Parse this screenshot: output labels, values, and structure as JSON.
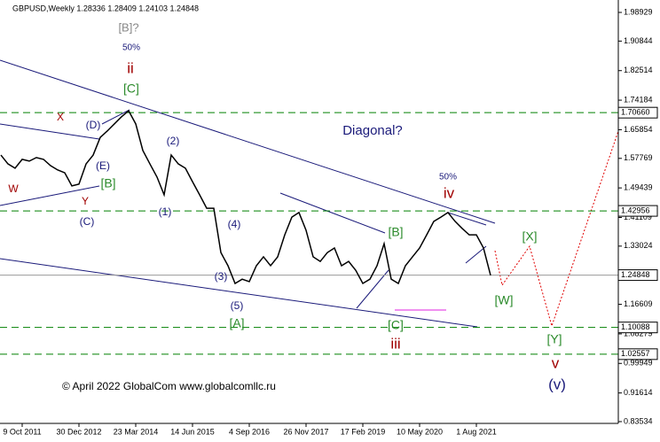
{
  "chart_data": {
    "type": "line",
    "title": "GBPUSD,Weekly  1.28336 1.28409 1.24103 1.24848",
    "categories": [
      null,
      null,
      null,
      "9 Oct 2011",
      null,
      null,
      null,
      null,
      null,
      null,
      null,
      "30 Dec 2012",
      null,
      null,
      null,
      null,
      null,
      null,
      null,
      "23 Mar 2014",
      null,
      null,
      null,
      null,
      null,
      null,
      null,
      "14 Jun 2015",
      null,
      null,
      null,
      null,
      null,
      null,
      null,
      "4 Sep 2016",
      null,
      null,
      null,
      null,
      null,
      null,
      null,
      "26 Nov 2017",
      null,
      null,
      null,
      null,
      null,
      null,
      null,
      "17 Feb 2019",
      null,
      null,
      null,
      null,
      null,
      null,
      null,
      "10 May 2020",
      null,
      null,
      null,
      null,
      null,
      null,
      null,
      "1 Aug 2021",
      null,
      null
    ],
    "series": [
      {
        "name": "GBPUSD",
        "color": "#000000",
        "values": [
          1.587,
          1.562,
          1.55,
          1.575,
          1.57,
          1.58,
          1.575,
          1.557,
          1.545,
          1.537,
          1.5,
          1.505,
          1.562,
          1.587,
          1.637,
          1.655,
          1.675,
          1.695,
          1.712,
          1.675,
          1.6,
          1.562,
          1.525,
          1.475,
          1.587,
          1.562,
          1.55,
          1.512,
          1.475,
          1.437,
          1.437,
          1.312,
          1.275,
          1.225,
          1.237,
          1.23,
          1.275,
          1.3,
          1.275,
          1.3,
          1.362,
          1.412,
          1.425,
          1.375,
          1.3,
          1.287,
          1.312,
          1.325,
          1.275,
          1.287,
          1.262,
          1.225,
          1.237,
          1.275,
          1.337,
          1.237,
          1.225,
          1.275,
          1.3,
          1.325,
          1.362,
          1.4,
          1.412,
          1.425,
          1.4,
          1.38,
          1.362,
          1.362,
          1.325,
          1.248
        ]
      }
    ],
    "ylim": [
      0.8303,
      2.0243
    ],
    "yticks": [
      1.98929,
      1.90844,
      1.82514,
      1.74184,
      1.65854,
      1.57769,
      1.49439,
      1.41109,
      1.33024,
      1.16609,
      1.08279,
      0.99949,
      0.91614,
      0.83534
    ],
    "levels": [
      {
        "value": 1.7066,
        "label": "1.70660",
        "color": "#008000"
      },
      {
        "value": 1.42956,
        "label": "1.42956",
        "color": "#008000"
      },
      {
        "value": 1.24848,
        "label": "1.24848",
        "color": "#999999"
      },
      {
        "value": 1.10088,
        "label": "1.10088",
        "color": "#008000"
      },
      {
        "value": 1.02557,
        "label": "1.02557",
        "color": "#008000"
      }
    ],
    "annotations": [
      "[B]?",
      "50%",
      "ii",
      "[C]",
      "X",
      "(D)",
      "(E)",
      "[B]",
      "W",
      "Y",
      "(C)",
      "(2)",
      "(1)",
      "(4)",
      "(3)",
      "(5)",
      "[A]",
      "Diagonal?",
      "50%",
      "iv",
      "[B]",
      "[C]",
      "iii",
      "[X]",
      "[W]",
      "[Y]",
      "v",
      "(v)"
    ],
    "copyright": "© April 2022 GlobalCom www.globalcomllc.ru"
  }
}
